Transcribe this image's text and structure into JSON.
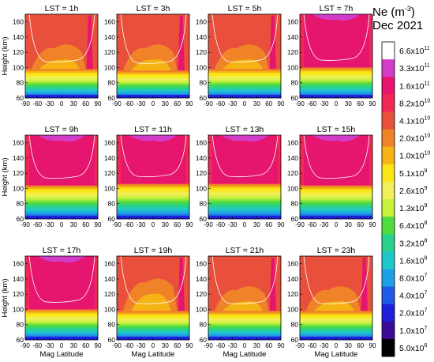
{
  "figure": {
    "title_line1": "Ne (m",
    "title_sup": "-3",
    "title_close": ")",
    "title_line2": "Dec 2021"
  },
  "colorbar": {
    "levels": [
      "6.6x10",
      "3.3x10",
      "1.6x10",
      "8.2x10",
      "4.1x10",
      "2.0x10",
      "1.0x10",
      "5.1x10",
      "2.6x10",
      "1.3x10",
      "6.4x10",
      "3.2x10",
      "1.6x10",
      "8.0x10",
      "4.0x10",
      "2.0x10",
      "1.0x10",
      "5.0x10"
    ],
    "exponents": [
      "11",
      "11",
      "11",
      "10",
      "10",
      "10",
      "10",
      "9",
      "9",
      "9",
      "8",
      "8",
      "8",
      "7",
      "7",
      "7",
      "7",
      "6"
    ],
    "colors": [
      "#ffffff",
      "#d23cc8",
      "#e6156e",
      "#f02855",
      "#e8503c",
      "#f08228",
      "#f5b414",
      "#fae614",
      "#f0f05a",
      "#c8f03c",
      "#50dc3c",
      "#28d28c",
      "#1ec8c8",
      "#1ea0e6",
      "#1e5ae6",
      "#1e1edc",
      "#3c0a96",
      "#000000"
    ]
  },
  "chart_data": {
    "type": "heatmap",
    "quantity": "Ne (m-3)",
    "period": "Dec 2021",
    "xlabel": "Mag Latitude",
    "ylabel": "Height (km)",
    "xlim": [
      -90,
      90
    ],
    "ylim": [
      60,
      170
    ],
    "xticks": [
      "-90",
      "-60",
      "-30",
      "0",
      "30",
      "60",
      "90"
    ],
    "yticks": [
      "60",
      "80",
      "100",
      "120",
      "140",
      "160"
    ],
    "panels": [
      {
        "label": "LST = 1h",
        "peak_level": 5,
        "e_layer_top_km": 98,
        "polar_spike": "north"
      },
      {
        "label": "LST = 3h",
        "peak_level": 5,
        "e_layer_top_km": 96,
        "polar_spike": "north"
      },
      {
        "label": "LST = 5h",
        "peak_level": 4,
        "e_layer_top_km": 98,
        "polar_spike": "north"
      },
      {
        "label": "LST = 7h",
        "peak_level": 2,
        "e_layer_top_km": 100,
        "polar_spike": "north"
      },
      {
        "label": "LST = 9h",
        "peak_level": 2,
        "e_layer_top_km": 104,
        "polar_spike": "none"
      },
      {
        "label": "LST = 11h",
        "peak_level": 2,
        "e_layer_top_km": 106,
        "polar_spike": "none"
      },
      {
        "label": "LST = 13h",
        "peak_level": 2,
        "e_layer_top_km": 106,
        "polar_spike": "none"
      },
      {
        "label": "LST = 15h",
        "peak_level": 2,
        "e_layer_top_km": 104,
        "polar_spike": "none"
      },
      {
        "label": "LST = 17h",
        "peak_level": 2,
        "e_layer_top_km": 100,
        "polar_spike": "none"
      },
      {
        "label": "LST = 19h",
        "peak_level": 3,
        "e_layer_top_km": 98,
        "polar_spike": "north"
      },
      {
        "label": "LST = 21h",
        "peak_level": 4,
        "e_layer_top_km": 98,
        "polar_spike": "north"
      },
      {
        "label": "LST = 23h",
        "peak_level": 4,
        "e_layer_top_km": 98,
        "polar_spike": "north"
      }
    ]
  }
}
